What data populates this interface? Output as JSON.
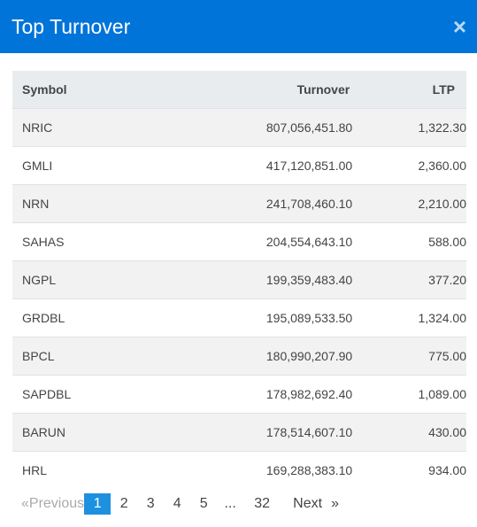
{
  "modal": {
    "title": "Top Turnover",
    "close_icon": "×"
  },
  "table": {
    "headers": {
      "symbol": "Symbol",
      "turnover": "Turnover",
      "ltp": "LTP"
    },
    "rows": [
      {
        "symbol": "NRIC",
        "turnover": "807,056,451.80",
        "ltp": "1,322.30"
      },
      {
        "symbol": "GMLI",
        "turnover": "417,120,851.00",
        "ltp": "2,360.00"
      },
      {
        "symbol": "NRN",
        "turnover": "241,708,460.10",
        "ltp": "2,210.00"
      },
      {
        "symbol": "SAHAS",
        "turnover": "204,554,643.10",
        "ltp": "588.00"
      },
      {
        "symbol": "NGPL",
        "turnover": "199,359,483.40",
        "ltp": "377.20"
      },
      {
        "symbol": "GRDBL",
        "turnover": "195,089,533.50",
        "ltp": "1,324.00"
      },
      {
        "symbol": "BPCL",
        "turnover": "180,990,207.90",
        "ltp": "775.00"
      },
      {
        "symbol": "SAPDBL",
        "turnover": "178,982,692.40",
        "ltp": "1,089.00"
      },
      {
        "symbol": "BARUN",
        "turnover": "178,514,607.10",
        "ltp": "430.00"
      },
      {
        "symbol": "HRL",
        "turnover": "169,288,383.10",
        "ltp": "934.00"
      }
    ]
  },
  "pagination": {
    "prev_arrow": "«",
    "previous": "Previous",
    "pages": [
      "1",
      "2",
      "3",
      "4",
      "5",
      "...",
      "32"
    ],
    "active": "1",
    "next": "Next",
    "next_arrow": "»"
  },
  "colors": {
    "header_bg": "#0074d9",
    "active_page": "#1e90e0"
  }
}
